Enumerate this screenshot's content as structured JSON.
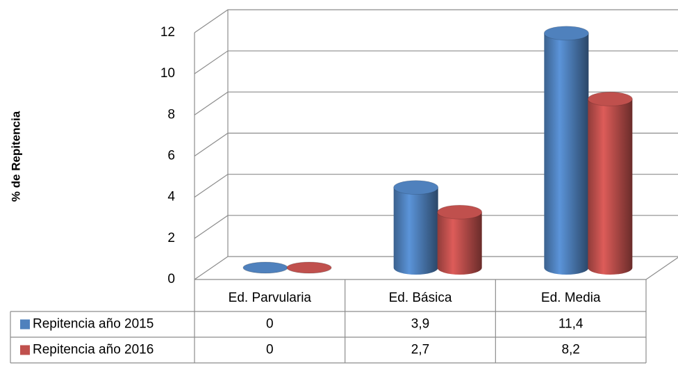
{
  "chart_data": {
    "type": "bar",
    "y_label": "% de Repitencia",
    "categories": [
      "Ed. Parvularia",
      "Ed. Básica",
      "Ed. Media"
    ],
    "series": [
      {
        "name": "Repitencia año 2015",
        "color": "#4f81bd",
        "values": [
          0,
          3.9,
          11.4
        ],
        "value_labels": [
          "0",
          "3,9",
          "11,4"
        ]
      },
      {
        "name": "Repitencia año 2016",
        "color": "#c0504d",
        "values": [
          0,
          2.7,
          8.2
        ],
        "value_labels": [
          "0",
          "2,7",
          "8,2"
        ]
      }
    ],
    "ylim": [
      0,
      12
    ],
    "yticks": [
      0,
      2,
      4,
      6,
      8,
      10,
      12
    ],
    "grid": true
  }
}
